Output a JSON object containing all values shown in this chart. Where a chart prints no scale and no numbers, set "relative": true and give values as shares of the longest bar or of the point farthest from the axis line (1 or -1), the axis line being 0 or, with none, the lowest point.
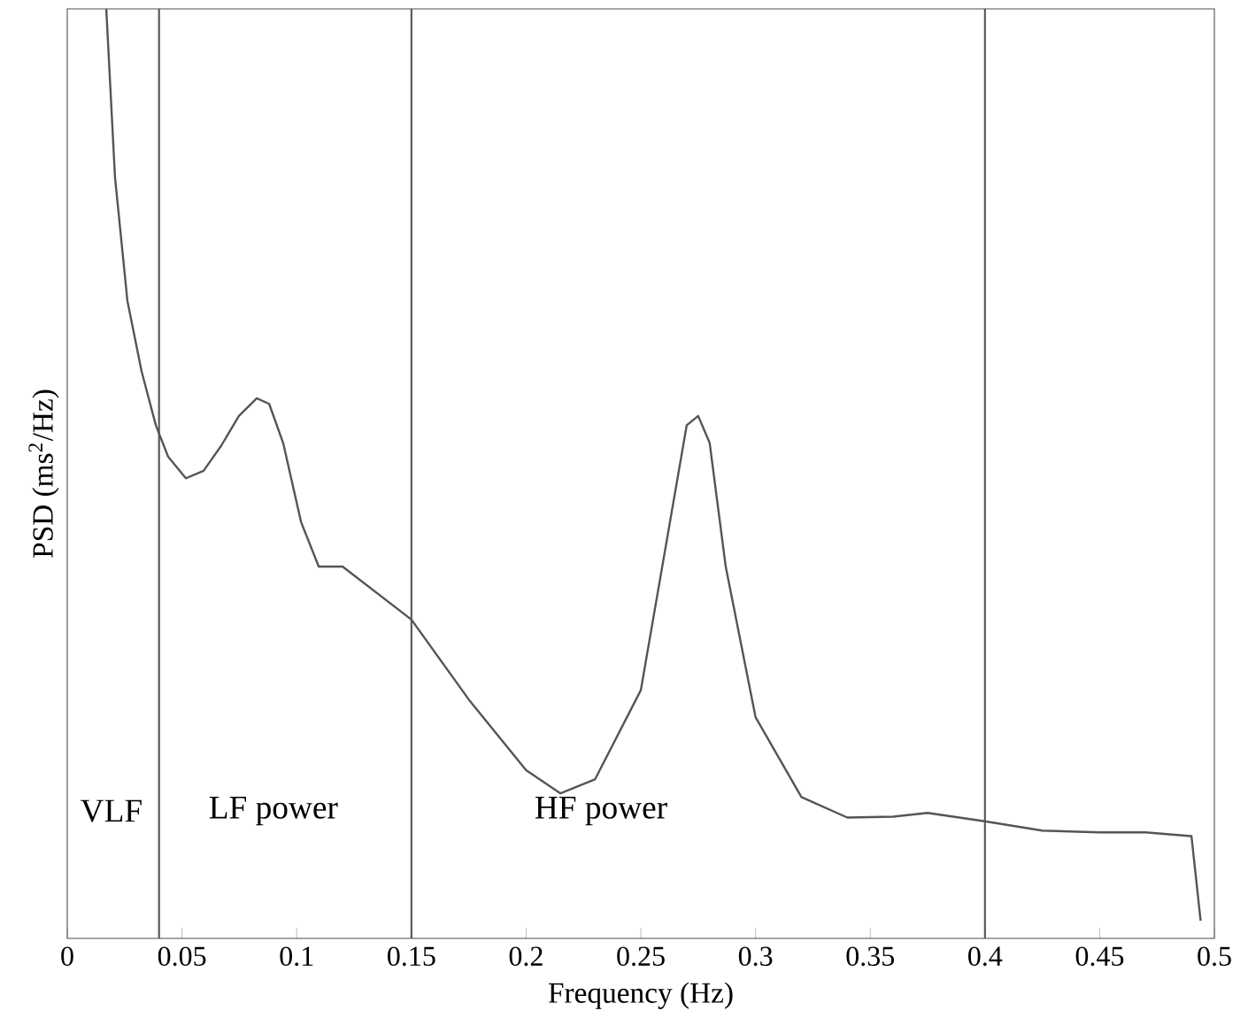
{
  "chart_data": {
    "type": "line",
    "relative": true,
    "xlabel": "Frequency (Hz)",
    "ylabel": "PSD (ms$^{2}$/Hz)",
    "xlim": [
      0,
      0.5
    ],
    "xticks": [
      0,
      0.05,
      0.1,
      0.15,
      0.2,
      0.25,
      0.3,
      0.35,
      0.4,
      0.45,
      0.5
    ],
    "series": [
      {
        "color": "#555555",
        "x": [
          0.017,
          0.0208,
          0.0262,
          0.0324,
          0.0386,
          0.044,
          0.0517,
          0.0594,
          0.0671,
          0.0748,
          0.0826,
          0.088,
          0.0941,
          0.1019,
          0.1096,
          0.12,
          0.15,
          0.175,
          0.2,
          0.215,
          0.23,
          0.25,
          0.262,
          0.27,
          0.275,
          0.28,
          0.287,
          0.3,
          0.32,
          0.34,
          0.36,
          0.375,
          0.4,
          0.425,
          0.45,
          0.47,
          0.49,
          0.494
        ],
        "values": [
          1.0,
          0.819,
          0.686,
          0.61,
          0.552,
          0.518,
          0.495,
          0.503,
          0.53,
          0.562,
          0.581,
          0.575,
          0.533,
          0.448,
          0.4,
          0.4,
          0.343,
          0.257,
          0.181,
          0.156,
          0.171,
          0.267,
          0.438,
          0.552,
          0.562,
          0.533,
          0.4,
          0.238,
          0.152,
          0.13,
          0.131,
          0.135,
          0.126,
          0.116,
          0.114,
          0.114,
          0.11,
          0.019
        ]
      }
    ],
    "ref_lines": [
      {
        "axis": "x",
        "value": 0.04,
        "color": "#555555"
      },
      {
        "axis": "x",
        "value": 0.15,
        "color": "#555555"
      },
      {
        "axis": "x",
        "value": 0.4,
        "color": "#555555"
      }
    ],
    "annotations": [
      "VLF",
      "LF power",
      "HF power"
    ],
    "marker": "none",
    "line_style": "solid"
  }
}
